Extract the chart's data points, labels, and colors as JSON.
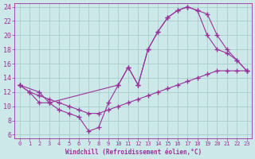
{
  "xlabel": "Windchill (Refroidissement éolien,°C)",
  "bg_color": "#cce8e8",
  "grid_color": "#aacccc",
  "line_color": "#993399",
  "xlim": [
    -0.5,
    23.5
  ],
  "ylim": [
    5.5,
    24.5
  ],
  "xticks": [
    0,
    1,
    2,
    3,
    4,
    5,
    6,
    7,
    8,
    9,
    10,
    11,
    12,
    13,
    14,
    15,
    16,
    17,
    18,
    19,
    20,
    21,
    22,
    23
  ],
  "yticks": [
    6,
    8,
    10,
    12,
    14,
    16,
    18,
    20,
    22,
    24
  ],
  "line1_x": [
    0,
    1,
    2,
    3,
    4,
    5,
    6,
    7,
    8,
    9,
    10,
    11,
    12,
    13,
    14,
    15,
    16,
    17,
    18,
    19,
    20,
    21,
    22,
    23
  ],
  "line1_y": [
    13.0,
    12.0,
    10.5,
    10.5,
    9.5,
    9.0,
    8.5,
    6.5,
    7.0,
    10.5,
    13.0,
    15.5,
    13.0,
    18.0,
    20.5,
    22.5,
    23.5,
    24.0,
    23.5,
    20.0,
    18.0,
    17.5,
    16.5,
    15.0
  ],
  "line2_x": [
    0,
    1,
    2,
    3,
    4,
    5,
    6,
    7,
    8,
    9,
    10,
    11,
    12,
    13,
    14,
    15,
    16,
    17,
    18,
    19,
    20,
    21,
    22,
    23
  ],
  "line2_y": [
    13.0,
    12.0,
    11.5,
    11.0,
    10.5,
    10.0,
    9.5,
    9.0,
    9.0,
    9.5,
    10.0,
    10.5,
    11.0,
    11.5,
    12.0,
    12.5,
    13.0,
    13.5,
    14.0,
    14.5,
    15.0,
    15.0,
    15.0,
    15.0
  ],
  "line3_x": [
    0,
    2,
    3,
    10,
    11,
    12,
    13,
    14,
    15,
    16,
    17,
    18,
    19,
    20,
    21,
    22,
    23
  ],
  "line3_y": [
    13.0,
    12.0,
    10.5,
    13.0,
    15.5,
    13.0,
    18.0,
    20.5,
    22.5,
    23.5,
    24.0,
    23.5,
    23.0,
    20.0,
    18.0,
    16.5,
    15.0
  ]
}
